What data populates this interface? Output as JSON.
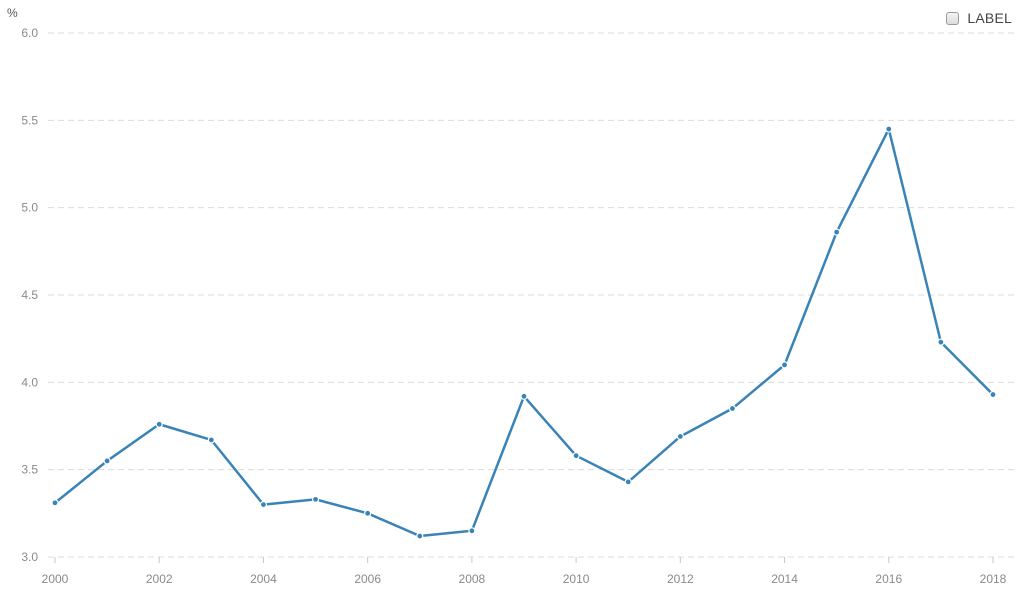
{
  "chart_data": {
    "type": "line",
    "unit_label": "%",
    "legend": {
      "label": "LABEL",
      "placement": "top-right"
    },
    "x": [
      2000,
      2001,
      2002,
      2003,
      2004,
      2005,
      2006,
      2007,
      2008,
      2009,
      2010,
      2011,
      2012,
      2013,
      2014,
      2015,
      2016,
      2017,
      2018
    ],
    "x_tick_labels": [
      "2000",
      "2002",
      "2004",
      "2006",
      "2008",
      "2010",
      "2012",
      "2014",
      "2016",
      "2018"
    ],
    "y_tick_labels": [
      "3.0",
      "3.5",
      "4.0",
      "4.5",
      "5.0",
      "5.5",
      "6.0"
    ],
    "series": [
      {
        "color": "#3a83b7",
        "values": [
          3.31,
          3.55,
          3.76,
          3.67,
          3.3,
          3.33,
          3.25,
          3.12,
          3.15,
          3.92,
          3.58,
          3.43,
          3.69,
          3.85,
          4.1,
          4.86,
          5.45,
          4.23,
          3.93
        ]
      }
    ],
    "xlim": [
      2000,
      2018
    ],
    "ylim": [
      3.0,
      6.0
    ],
    "grid": true
  }
}
